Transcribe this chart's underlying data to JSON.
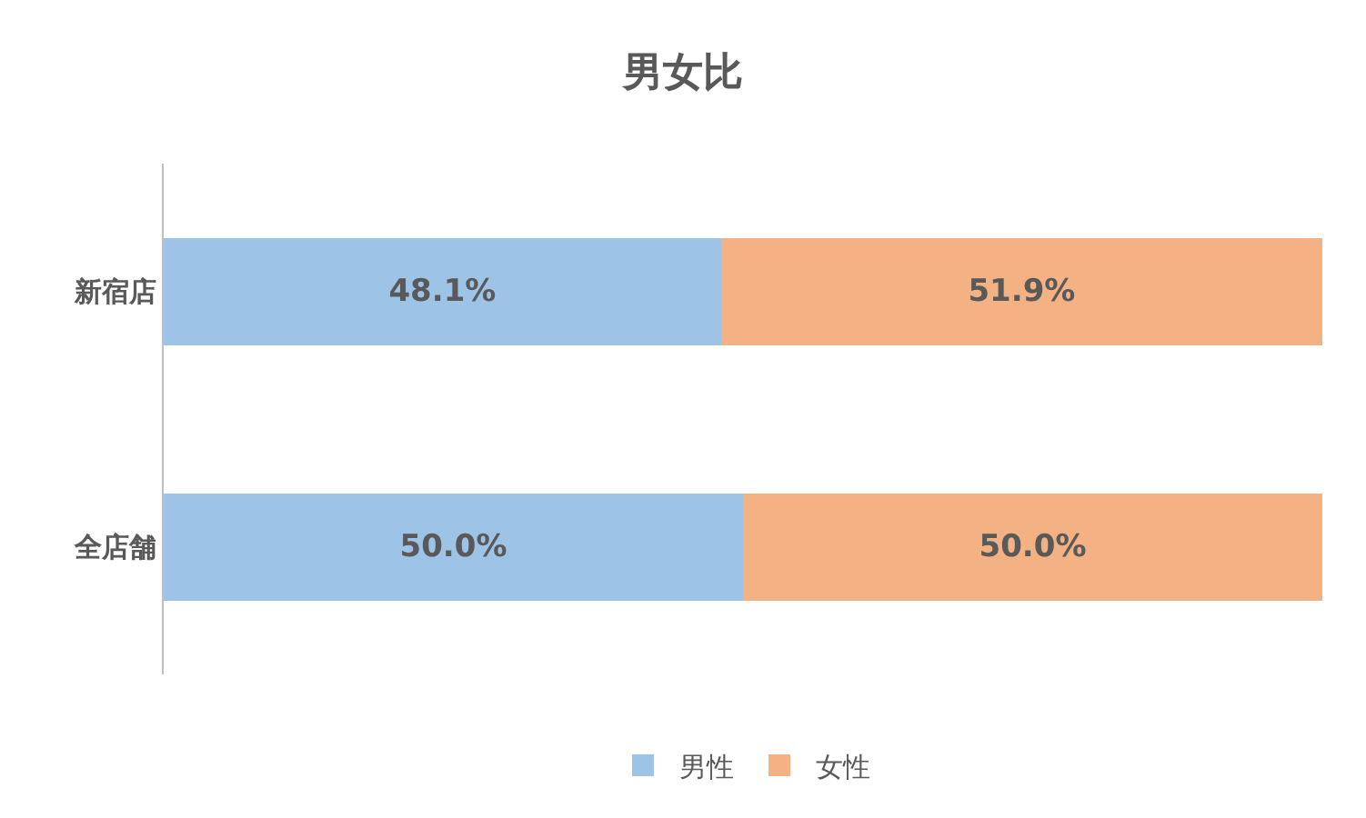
{
  "chart_data": {
    "type": "bar",
    "title": "男女比",
    "orientation": "horizontal",
    "stacked": true,
    "categories": [
      "新宿店",
      "全店舗"
    ],
    "series": [
      {
        "name": "男性",
        "color": "#9dc3e6",
        "values": [
          48.1,
          50.0
        ],
        "value_labels": [
          "48.1%",
          "50.0%"
        ]
      },
      {
        "name": "女性",
        "color": "#f4b183",
        "values": [
          51.9,
          50.0
        ],
        "value_labels": [
          "51.9%",
          "50.0%"
        ]
      }
    ],
    "grid": false,
    "legend": "bottom",
    "tick_labels": "y"
  }
}
